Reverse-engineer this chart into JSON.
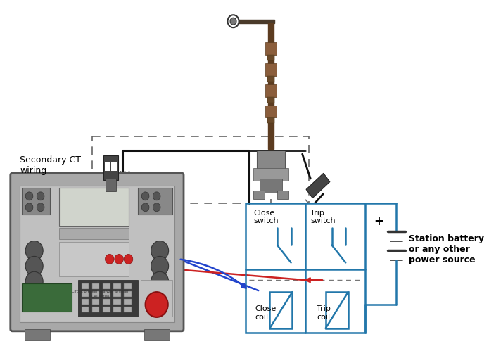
{
  "bg_color": "#ffffff",
  "secondary_ct_label": "Secondary CT\nwiring",
  "station_battery_label": "Station battery\nor any other\npower source",
  "close_switch_label": "Close\nswitch",
  "trip_switch_label": "Trip\nswitch",
  "close_coil_label": "Close\ncoil",
  "trip_coil_label": "Trip\ncoil",
  "blue_wire": "#2244cc",
  "red_wire": "#cc2222",
  "line_color": "#111111",
  "circuit_line_color": "#2277aa",
  "dashed_color": "#666666"
}
